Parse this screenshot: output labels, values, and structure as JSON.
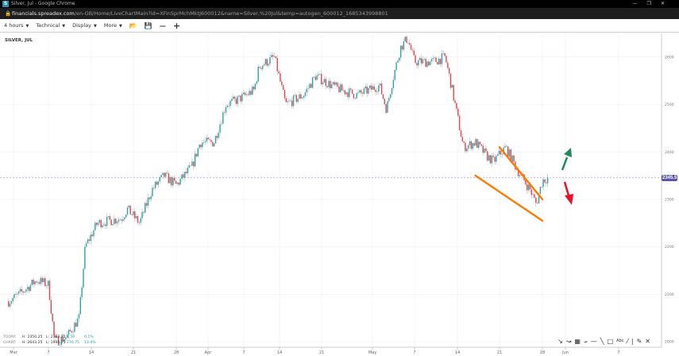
{
  "window": {
    "title": "Silver, Jul - Google Chrome",
    "controls": [
      "—",
      "❐",
      "✕"
    ]
  },
  "address": {
    "host": "financials.spreadex.com",
    "path": "/en-GB/Home/LiveChartMain?id=XFinSprMchMktJ600012&name=Silver,%20Jul&temp=autogen_600012_1685343998801"
  },
  "toolbar": {
    "interval": "4 hours",
    "technical": "Technical",
    "display": "Display",
    "more": "More"
  },
  "symbol": "SILVER, JUL",
  "stats": {
    "today": {
      "label": "TODAY:",
      "high": "H: 2350.25",
      "low": "L: 2333.75",
      "change": "3.50",
      "pct": "0.1%"
    },
    "chart": {
      "label": "CHART:",
      "high": "H: 2643.25",
      "low": "L: 1994.75",
      "change": "276.75",
      "pct": "13.4%"
    }
  },
  "current_price": "2345.5",
  "colors": {
    "up": "#2aa3a8",
    "down": "#e0444e",
    "trendline": "#ff7a00",
    "arrow_up": "#1f8a5a",
    "arrow_down": "#e8102a",
    "price_line": "#6a64b8"
  },
  "chart_data": {
    "type": "candlestick",
    "title": "SILVER, JUL",
    "interval": "4 hours",
    "ylim": [
      2000,
      2650
    ],
    "y_ticks": [
      "2000",
      "2100",
      "2200",
      "2300",
      "2400",
      "2500",
      "2600"
    ],
    "x_ticks": [
      "Mar",
      "7",
      "14",
      "21",
      "28",
      "Apr",
      "7",
      "14",
      "21",
      "May",
      "7",
      "14",
      "21",
      "28",
      "Jun",
      "7"
    ],
    "grid": true,
    "price_path": [
      [
        "2023-02-28",
        2085
      ],
      [
        "2023-03-02",
        2100
      ],
      [
        "2023-03-05",
        2130
      ],
      [
        "2023-03-07",
        2120
      ],
      [
        "2023-03-08",
        2000
      ],
      [
        "2023-03-10",
        2010
      ],
      [
        "2023-03-12",
        2050
      ],
      [
        "2023-03-13",
        2200
      ],
      [
        "2023-03-15",
        2250
      ],
      [
        "2023-03-19",
        2260
      ],
      [
        "2023-03-20",
        2280
      ],
      [
        "2023-03-22",
        2250
      ],
      [
        "2023-03-24",
        2320
      ],
      [
        "2023-03-26",
        2350
      ],
      [
        "2023-03-28",
        2330
      ],
      [
        "2023-03-30",
        2370
      ],
      [
        "2023-03-31",
        2420
      ],
      [
        "2023-04-02",
        2420
      ],
      [
        "2023-04-04",
        2500
      ],
      [
        "2023-04-06",
        2510
      ],
      [
        "2023-04-09",
        2530
      ],
      [
        "2023-04-10",
        2580
      ],
      [
        "2023-04-13",
        2600
      ],
      [
        "2023-04-15",
        2500
      ],
      [
        "2023-04-18",
        2520
      ],
      [
        "2023-04-20",
        2560
      ],
      [
        "2023-04-23",
        2540
      ],
      [
        "2023-04-25",
        2530
      ],
      [
        "2023-04-28",
        2520
      ],
      [
        "2023-05-02",
        2540
      ],
      [
        "2023-05-03",
        2490
      ],
      [
        "2023-05-04",
        2560
      ],
      [
        "2023-05-05",
        2620
      ],
      [
        "2023-05-06",
        2640
      ],
      [
        "2023-05-07",
        2590
      ],
      [
        "2023-05-10",
        2590
      ],
      [
        "2023-05-12",
        2600
      ],
      [
        "2023-05-13",
        2540
      ],
      [
        "2023-05-15",
        2410
      ],
      [
        "2023-05-17",
        2420
      ],
      [
        "2023-05-19",
        2390
      ],
      [
        "2023-05-20",
        2380
      ],
      [
        "2023-05-22",
        2410
      ],
      [
        "2023-05-24",
        2360
      ],
      [
        "2023-05-26",
        2320
      ],
      [
        "2023-05-27",
        2290
      ],
      [
        "2023-05-28",
        2340
      ],
      [
        "2023-05-29",
        2345.5
      ]
    ],
    "trendlines": [
      {
        "from": [
          "2023-05-21",
          2410
        ],
        "to": [
          "2023-05-28",
          2300
        ]
      },
      {
        "from": [
          "2023-05-17",
          2350
        ],
        "to": [
          "2023-05-28",
          2255
        ]
      }
    ],
    "arrows": [
      {
        "direction": "up",
        "color": "#1f8a5a"
      },
      {
        "direction": "down",
        "color": "#e8102a"
      }
    ]
  }
}
